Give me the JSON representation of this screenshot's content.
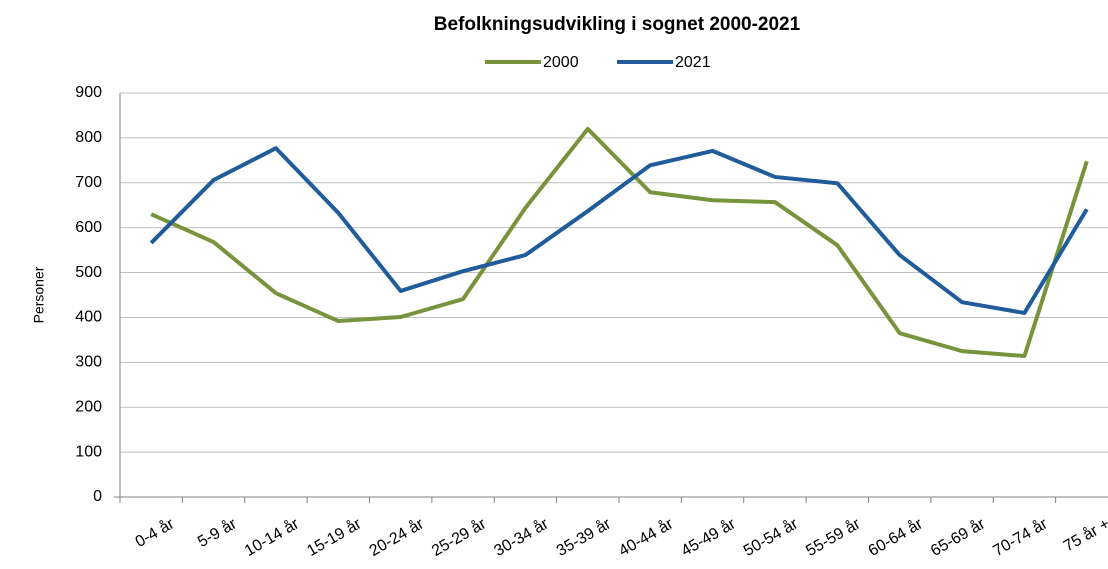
{
  "chart_data": {
    "type": "line",
    "title": "Befolkningsudvikling i sognet 2000-2021",
    "y_label": "Personer",
    "categories": [
      "0-4 år",
      "5-9 år",
      "10-14 år",
      "15-19 år",
      "20-24 år",
      "25-29 år",
      "30-34 år",
      "35-39 år",
      "40-44 år",
      "45-49 år",
      "50-54 år",
      "55-59 år",
      "60-64 år",
      "65-69 år",
      "70-74 år",
      "75 år +"
    ],
    "series": [
      {
        "name": "2000",
        "color": "#77933c",
        "values": [
          630,
          568,
          454,
          392,
          401,
          441,
          644,
          820,
          679,
          661,
          657,
          561,
          365,
          325,
          314,
          748
        ]
      },
      {
        "name": "2021",
        "color": "#1f5c99",
        "values": [
          566,
          706,
          777,
          633,
          459,
          503,
          539,
          637,
          739,
          771,
          713,
          699,
          539,
          434,
          410,
          641
        ]
      }
    ],
    "ylim": [
      0,
      900
    ],
    "yticks": [
      0,
      100,
      200,
      300,
      400,
      500,
      600,
      700,
      800,
      900
    ],
    "grid": true,
    "legend": "top"
  }
}
